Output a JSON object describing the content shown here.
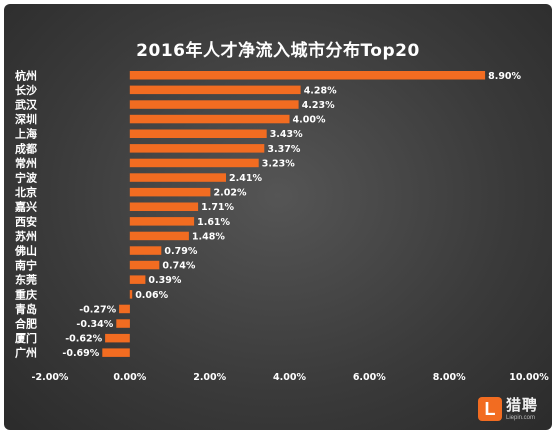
{
  "chart_data": {
    "type": "bar",
    "orientation": "horizontal",
    "title": "2016年人才净流入城市分布Top20",
    "categories": [
      "杭州",
      "长沙",
      "武汉",
      "深圳",
      "上海",
      "成都",
      "常州",
      "宁波",
      "北京",
      "嘉兴",
      "西安",
      "苏州",
      "佛山",
      "南宁",
      "东莞",
      "重庆",
      "青岛",
      "合肥",
      "厦门",
      "广州"
    ],
    "values": [
      8.9,
      4.28,
      4.23,
      4.0,
      3.43,
      3.37,
      3.23,
      2.41,
      2.02,
      1.71,
      1.61,
      1.48,
      0.79,
      0.74,
      0.39,
      0.06,
      -0.27,
      -0.34,
      -0.62,
      -0.69
    ],
    "value_labels": [
      "8.90%",
      "4.28%",
      "4.23%",
      "4.00%",
      "3.43%",
      "3.37%",
      "3.23%",
      "2.41%",
      "2.02%",
      "1.71%",
      "1.61%",
      "1.48%",
      "0.79%",
      "0.74%",
      "0.39%",
      "0.06%",
      "-0.27%",
      "-0.34%",
      "-0.62%",
      "-0.69%"
    ],
    "xlim": [
      -2,
      10
    ],
    "x_ticks": [
      -2,
      0,
      2,
      4,
      6,
      8,
      10
    ],
    "x_tick_labels": [
      "-2.00%",
      "0.00%",
      "2.00%",
      "4.00%",
      "6.00%",
      "8.00%",
      "10.00%"
    ],
    "bar_color": "#f26c21",
    "grid": false,
    "legend": "none"
  },
  "logo": {
    "mark": "L",
    "name": "猎聘",
    "url": "Liepin.com",
    "color": "#f26c21"
  }
}
